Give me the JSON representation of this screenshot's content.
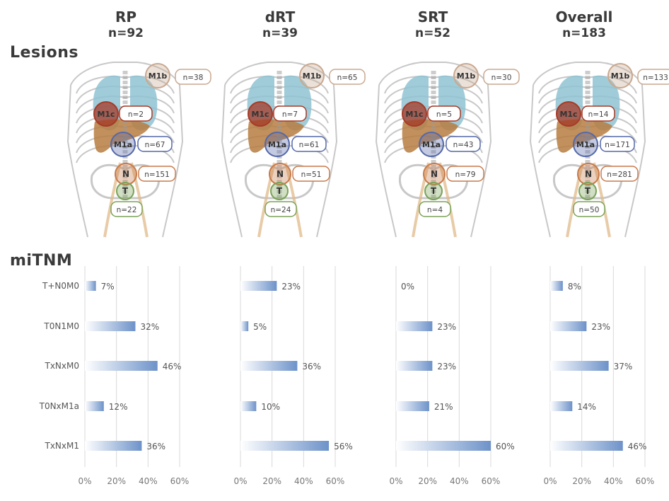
{
  "headings": {
    "lesions": "Lesions",
    "mitnm": "miTNM"
  },
  "colors": {
    "m1b": "#c9a88f",
    "m1c": "#a63a26",
    "m1a": "#5468a8",
    "n": "#c87a4a",
    "t": "#7aa257",
    "bar": "#6d92c9",
    "lung": "#8fc3d3",
    "liver": "#b77c3f",
    "skeleton": "#9a9a9a",
    "lymph": "#e0b98a"
  },
  "groups": [
    {
      "name": "RP",
      "n_label": "n=92",
      "lesions": {
        "m1b": "n=38",
        "m1c": "n=2",
        "m1a": "n=67",
        "n": "n=151",
        "t": "n=22"
      }
    },
    {
      "name": "dRT",
      "n_label": "n=39",
      "lesions": {
        "m1b": "n=65",
        "m1c": "n=7",
        "m1a": "n=61",
        "n": "n=51",
        "t": "n=24"
      }
    },
    {
      "name": "SRT",
      "n_label": "n=52",
      "lesions": {
        "m1b": "n=30",
        "m1c": "n=5",
        "m1a": "n=43",
        "n": "n=79",
        "t": "n=4"
      }
    },
    {
      "name": "Overall",
      "n_label": "n=183",
      "lesions": {
        "m1b": "n=133",
        "m1c": "n=14",
        "m1a": "n=171",
        "n": "n=281",
        "t": "n=50"
      }
    }
  ],
  "lesion_names": {
    "m1b": "M1b",
    "m1c": "M1c",
    "m1a": "M1a",
    "n": "N",
    "t": "T"
  },
  "chart_data": [
    {
      "type": "bar",
      "orientation": "horizontal",
      "group": "RP",
      "categories": [
        "T+N0M0",
        "T0N1M0",
        "TxNxM0",
        "T0NxM1a",
        "TxNxM1"
      ],
      "values": [
        7,
        32,
        46,
        12,
        36
      ],
      "labels": [
        "7%",
        "32%",
        "46%",
        "12%",
        "36%"
      ],
      "xlim": [
        0,
        60
      ],
      "xticks": [
        "0%",
        "20%",
        "40%",
        "60%"
      ],
      "grid": true
    },
    {
      "type": "bar",
      "orientation": "horizontal",
      "group": "dRT",
      "categories": [
        "T+N0M0",
        "T0N1M0",
        "TxNxM0",
        "T0NxM1a",
        "TxNxM1"
      ],
      "values": [
        23,
        5,
        36,
        10,
        56
      ],
      "labels": [
        "23%",
        "5%",
        "36%",
        "10%",
        "56%"
      ],
      "xlim": [
        0,
        60
      ],
      "xticks": [
        "0%",
        "20%",
        "40%",
        "60%"
      ],
      "grid": true
    },
    {
      "type": "bar",
      "orientation": "horizontal",
      "group": "SRT",
      "categories": [
        "T+N0M0",
        "T0N1M0",
        "TxNxM0",
        "T0NxM1a",
        "TxNxM1"
      ],
      "values": [
        0,
        23,
        23,
        21,
        60
      ],
      "labels": [
        "0%",
        "23%",
        "23%",
        "21%",
        "60%"
      ],
      "xlim": [
        0,
        60
      ],
      "xticks": [
        "0%",
        "20%",
        "40%",
        "60%"
      ],
      "grid": true
    },
    {
      "type": "bar",
      "orientation": "horizontal",
      "group": "Overall",
      "categories": [
        "T+N0M0",
        "T0N1M0",
        "TxNxM0",
        "T0NxM1a",
        "TxNxM1"
      ],
      "values": [
        8,
        23,
        37,
        14,
        46
      ],
      "labels": [
        "8%",
        "23%",
        "37%",
        "14%",
        "46%"
      ],
      "xlim": [
        0,
        60
      ],
      "xticks": [
        "0%",
        "20%",
        "40%",
        "60%"
      ],
      "grid": true
    }
  ]
}
